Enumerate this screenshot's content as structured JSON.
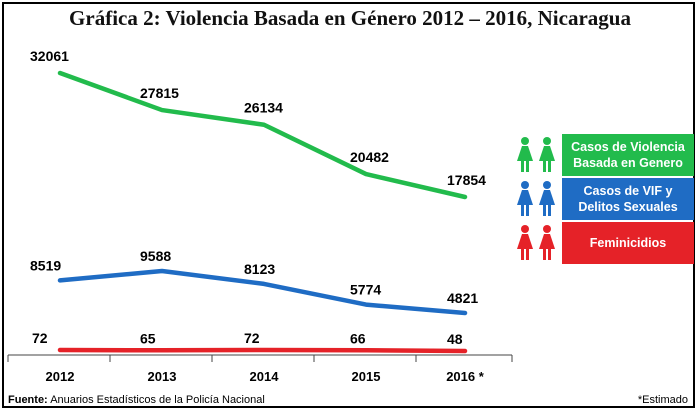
{
  "title": "Gráfica 2: Violencia Basada en Género 2012 – 2016, Nicaragua",
  "source_label": "Fuente:",
  "source_text": "Anuarios Estadísticos de la Policía Nacional",
  "note": "*Estimado",
  "colors": {
    "green": "#22bb4c",
    "blue": "#1f6cc4",
    "red": "#e52228"
  },
  "legend": [
    {
      "label": "Casos de Violencia Basada en Genero",
      "color": "#22bb4c",
      "icon": "female-figure-icon"
    },
    {
      "label": "Casos de VIF y Delitos Sexuales",
      "color": "#1f6cc4",
      "icon": "female-figure-icon"
    },
    {
      "label": "Feminicidios",
      "color": "#e52228",
      "icon": "female-figure-icon"
    }
  ],
  "chart_data": {
    "type": "line",
    "title": "Gráfica 2: Violencia Basada en Género 2012 – 2016, Nicaragua",
    "categories": [
      "2012",
      "2013",
      "2014",
      "2015",
      "2016 *"
    ],
    "series": [
      {
        "name": "Casos de Violencia Basada en Genero",
        "color": "#22bb4c",
        "values": [
          32061,
          27815,
          26134,
          20482,
          17854
        ]
      },
      {
        "name": "Casos de VIF y Delitos Sexuales",
        "color": "#1f6cc4",
        "values": [
          8519,
          9588,
          8123,
          5774,
          4821
        ]
      },
      {
        "name": "Feminicidios",
        "color": "#e52228",
        "values": [
          72,
          65,
          72,
          66,
          48
        ]
      }
    ],
    "xlabel": "",
    "ylabel": "",
    "ylim": [
      0,
      34000
    ],
    "grid": false,
    "legend_position": "right"
  }
}
